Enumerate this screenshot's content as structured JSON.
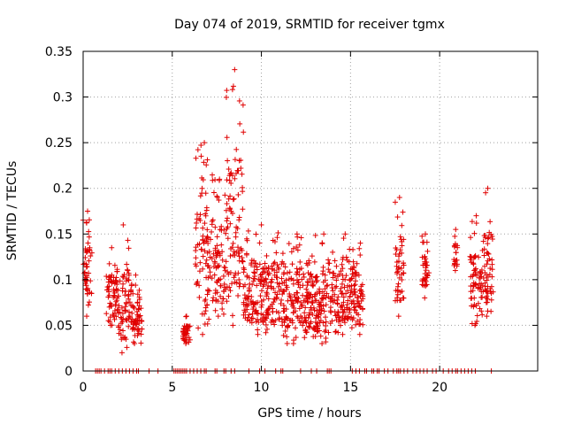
{
  "chart_data": {
    "type": "scatter",
    "title": "Day 074 of 2019, SRMTID for receiver tgmx",
    "xlabel": "GPS time / hours",
    "ylabel": "SRMTID / TECUs",
    "xlim": [
      0,
      25.5
    ],
    "ylim": [
      0,
      0.35
    ],
    "xticks": [
      0,
      5,
      10,
      15,
      20
    ],
    "xtick_labels": [
      "0",
      "5",
      "10",
      "15",
      "20"
    ],
    "yticks": [
      0,
      0.05,
      0.1,
      0.15,
      0.2,
      0.25,
      0.3,
      0.35
    ],
    "ytick_labels": [
      "0",
      "0.05",
      "0.1",
      "0.15",
      "0.2",
      "0.25",
      "0.3",
      "0.35"
    ],
    "grid": true,
    "marker": "+",
    "color": "#e00000",
    "series": [
      {
        "name": "SRMTID",
        "clusters": [
          {
            "t": [
              0.0,
              0.5
            ],
            "v": [
              0.06,
              0.175
            ]
          },
          {
            "t": [
              1.3,
              1.9
            ],
            "v": [
              0.05,
              0.135
            ]
          },
          {
            "t": [
              1.9,
              2.6
            ],
            "v": [
              0.02,
              0.16
            ]
          },
          {
            "t": [
              2.6,
              3.3
            ],
            "v": [
              0.03,
              0.105
            ]
          },
          {
            "t": [
              5.6,
              6.0
            ],
            "v": [
              0.03,
              0.06
            ]
          },
          {
            "t": [
              6.3,
              7.3
            ],
            "v": [
              0.04,
              0.25
            ]
          },
          {
            "t": [
              7.3,
              8.0
            ],
            "v": [
              0.06,
              0.21
            ]
          },
          {
            "t": [
              8.0,
              9.0
            ],
            "v": [
              0.05,
              0.33
            ]
          },
          {
            "t": [
              9.0,
              11.0
            ],
            "v": [
              0.04,
              0.16
            ]
          },
          {
            "t": [
              11.0,
              13.0
            ],
            "v": [
              0.03,
              0.15
            ]
          },
          {
            "t": [
              13.0,
              14.0
            ],
            "v": [
              0.03,
              0.15
            ]
          },
          {
            "t": [
              14.0,
              15.4
            ],
            "v": [
              0.04,
              0.15
            ]
          },
          {
            "t": [
              15.4,
              15.7
            ],
            "v": [
              0.04,
              0.14
            ]
          },
          {
            "t": [
              17.5,
              18.0
            ],
            "v": [
              0.06,
              0.19
            ]
          },
          {
            "t": [
              19.0,
              19.4
            ],
            "v": [
              0.08,
              0.15
            ]
          },
          {
            "t": [
              20.8,
              21.0
            ],
            "v": [
              0.11,
              0.155
            ]
          },
          {
            "t": [
              21.7,
              22.4
            ],
            "v": [
              0.05,
              0.17
            ]
          },
          {
            "t": [
              22.4,
              23.0
            ],
            "v": [
              0.06,
              0.2
            ]
          }
        ]
      }
    ],
    "zero_points": [
      0.7,
      0.8,
      0.9,
      1.0,
      1.2,
      1.4,
      1.5,
      1.6,
      1.8,
      2.0,
      2.2,
      2.4,
      2.6,
      2.8,
      3.0,
      3.1,
      3.7,
      4.2,
      5.1,
      5.2,
      5.3,
      5.4,
      5.5,
      5.6,
      5.7,
      5.8,
      6.0,
      6.2,
      6.4,
      6.6,
      6.8,
      6.9,
      7.4,
      7.5,
      7.9,
      8.0,
      8.3,
      8.5,
      9.3,
      9.9,
      10.2,
      10.8,
      11.1,
      11.2,
      12.2,
      12.8,
      13.1,
      13.7,
      13.8,
      13.9,
      15.1,
      15.3,
      15.5,
      15.8,
      15.9,
      16.2,
      16.3,
      16.5,
      16.6,
      16.9,
      17.1,
      17.4,
      17.6,
      17.7,
      17.8,
      18.0,
      18.2,
      18.5,
      18.7,
      18.9,
      19.1,
      19.3,
      19.6,
      19.8,
      20.2,
      20.5,
      20.7,
      20.9,
      21.0,
      21.2,
      21.4,
      21.6,
      21.8,
      22.0,
      22.9
    ]
  }
}
